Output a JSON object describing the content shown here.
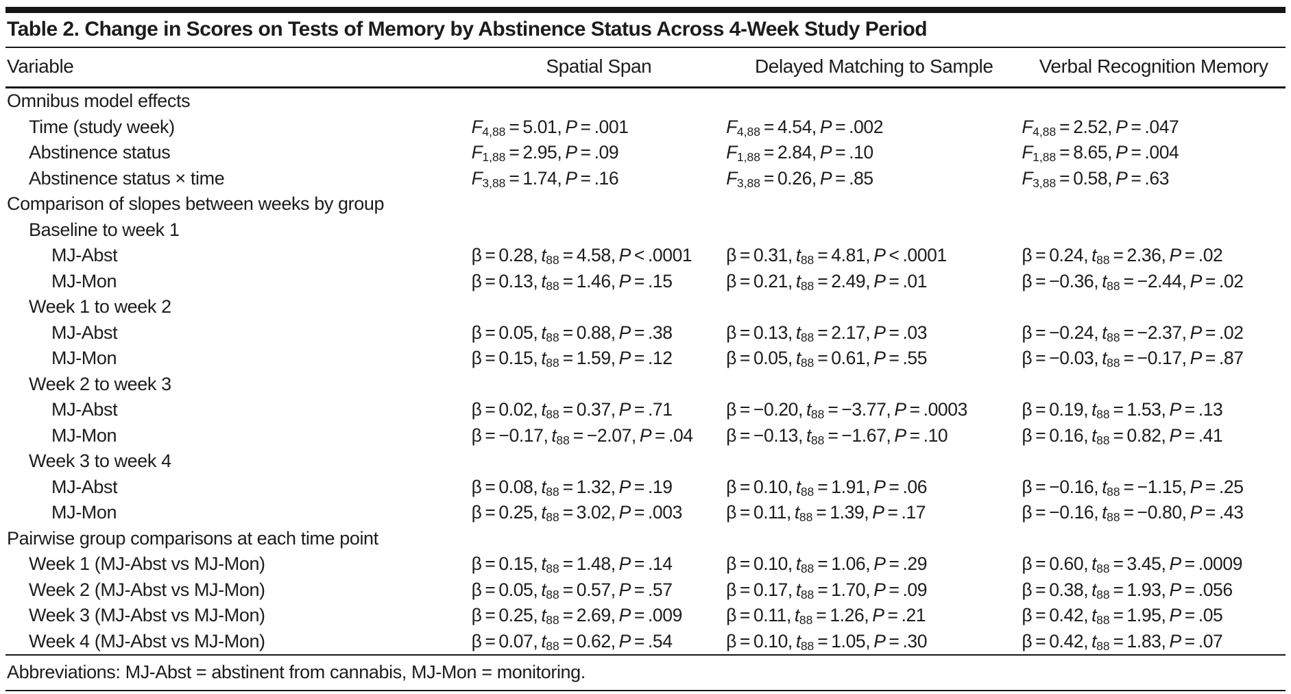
{
  "title": "Table 2. Change in Scores on Tests of Memory by Abstinence Status Across 4-Week Study Period",
  "columns": [
    "Variable",
    "Spatial Span",
    "Delayed Matching to Sample",
    "Verbal Recognition Memory"
  ],
  "colors": {
    "ink": "#1c1c1c",
    "rule": "#161616",
    "background": "#ffffff"
  },
  "rows": [
    {
      "label": "Omnibus model effects",
      "indent": 0,
      "cells": [
        "",
        "",
        ""
      ]
    },
    {
      "label": "Time (study week)",
      "indent": 1,
      "cells": [
        "*F*_4,88_ = 5.01, *P* = .001",
        "*F*_4,88_ = 4.54, *P* = .002",
        "*F*_4,88_ = 2.52, *P* = .047"
      ]
    },
    {
      "label": "Abstinence status",
      "indent": 1,
      "cells": [
        "*F*_1,88_ = 2.95, *P* = .09",
        "*F*_1,88_ = 2.84, *P* = .10",
        "*F*_1,88_ = 8.65, *P* = .004"
      ]
    },
    {
      "label": "Abstinence status × time",
      "indent": 1,
      "cells": [
        "*F*_3,88_ = 1.74, *P* = .16",
        "*F*_3,88_ = 0.26, *P* = .85",
        "*F*_3,88_ = 0.58, *P* = .63"
      ]
    },
    {
      "label": "Comparison of slopes between weeks by group",
      "indent": 0,
      "cells": [
        "",
        "",
        ""
      ]
    },
    {
      "label": "Baseline to week 1",
      "indent": 1,
      "cells": [
        "",
        "",
        ""
      ]
    },
    {
      "label": "MJ-Abst",
      "indent": 2,
      "cells": [
        "β = 0.28, *t*_88_ = 4.58, *P* < .0001",
        "β = 0.31, *t*_88_ = 4.81, *P* < .0001",
        "β = 0.24, *t*_88_ = 2.36, *P* = .02"
      ]
    },
    {
      "label": "MJ-Mon",
      "indent": 2,
      "cells": [
        "β = 0.13, *t*_88_ = 1.46, *P* = .15",
        "β = 0.21, *t*_88_ = 2.49, *P* = .01",
        "β = −0.36, *t*_88_ = −2.44, *P* = .02"
      ]
    },
    {
      "label": "Week 1 to week 2",
      "indent": 1,
      "cells": [
        "",
        "",
        ""
      ]
    },
    {
      "label": "MJ-Abst",
      "indent": 2,
      "cells": [
        "β = 0.05, *t*_88_ = 0.88, *P* = .38",
        "β = 0.13, *t*_88_ = 2.17, *P* = .03",
        "β = −0.24, *t*_88_ = −2.37, *P* = .02"
      ]
    },
    {
      "label": "MJ-Mon",
      "indent": 2,
      "cells": [
        "β = 0.15, *t*_88_ = 1.59, *P* = .12",
        "β = 0.05, *t*_88_ = 0.61, *P* = .55",
        "β = −0.03, *t*_88_ = −0.17, *P* = .87"
      ]
    },
    {
      "label": "Week 2 to week 3",
      "indent": 1,
      "cells": [
        "",
        "",
        ""
      ]
    },
    {
      "label": "MJ-Abst",
      "indent": 2,
      "cells": [
        "β = 0.02, *t*_88_ = 0.37, *P* = .71",
        "β = −0.20, *t*_88_ = −3.77, *P* = .0003",
        "β = 0.19, *t*_88_ = 1.53, *P* = .13"
      ]
    },
    {
      "label": "MJ-Mon",
      "indent": 2,
      "cells": [
        "β = −0.17, *t*_88_ = −2.07, *P* = .04",
        "β = −0.13, *t*_88_ = −1.67, *P* = .10",
        "β = 0.16, *t*_88_ = 0.82, *P* = .41"
      ]
    },
    {
      "label": "Week 3 to week 4",
      "indent": 1,
      "cells": [
        "",
        "",
        ""
      ]
    },
    {
      "label": "MJ-Abst",
      "indent": 2,
      "cells": [
        "β = 0.08, *t*_88_ = 1.32, *P* = .19",
        "β = 0.10, *t*_88_ = 1.91, *P* = .06",
        "β = −0.16, *t*_88_ = −1.15, *P* = .25"
      ]
    },
    {
      "label": "MJ-Mon",
      "indent": 2,
      "cells": [
        "β = 0.25, *t*_88_ = 3.02, *P* = .003",
        "β = 0.11, *t*_88_ = 1.39, *P* = .17",
        "β = −0.16, *t*_88_ = −0.80, *P* = .43"
      ]
    },
    {
      "label": "Pairwise group comparisons at each time point",
      "indent": 0,
      "cells": [
        "",
        "",
        ""
      ]
    },
    {
      "label": "Week 1 (MJ-Abst vs MJ-Mon)",
      "indent": 1,
      "cells": [
        "β = 0.15, *t*_88_ = 1.48, *P* = .14",
        "β = 0.10, *t*_88_ = 1.06, *P* = .29",
        "β = 0.60, *t*_88_ = 3.45, *P* = .0009"
      ]
    },
    {
      "label": "Week 2 (MJ-Abst vs MJ-Mon)",
      "indent": 1,
      "cells": [
        "β = 0.05, *t*_88_ = 0.57, *P* = .57",
        "β = 0.17, *t*_88_ = 1.70, *P* = .09",
        "β = 0.38, *t*_88_ = 1.93, *P* = .056"
      ]
    },
    {
      "label": "Week 3 (MJ-Abst vs MJ-Mon)",
      "indent": 1,
      "cells": [
        "β = 0.25, *t*_88_ = 2.69, *P* = .009",
        "β = 0.11, *t*_88_ = 1.26, *P* = .21",
        "β = 0.42, *t*_88_ = 1.95, *P* = .05"
      ]
    },
    {
      "label": "Week 4 (MJ-Abst vs MJ-Mon)",
      "indent": 1,
      "cells": [
        "β = 0.07, *t*_88_ = 0.62, *P* = .54",
        "β = 0.10, *t*_88_ = 1.05, *P* = .30",
        "β = 0.42, *t*_88_ = 1.83, *P* = .07"
      ]
    }
  ],
  "footnote": "Abbreviations: MJ-Abst = abstinent from cannabis, MJ-Mon = monitoring."
}
